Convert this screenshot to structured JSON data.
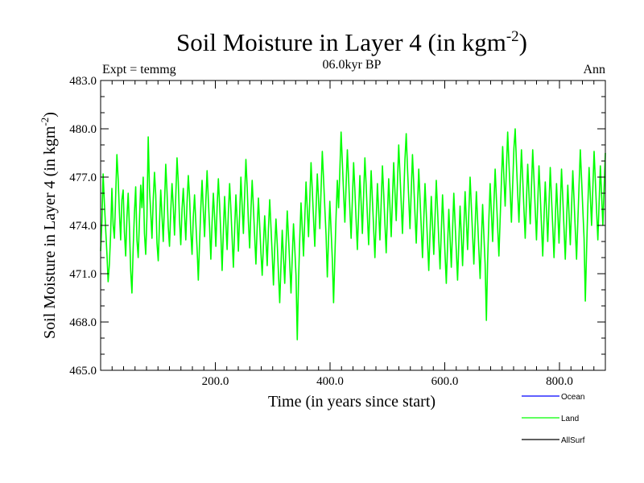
{
  "chart_data": {
    "type": "line",
    "title_main": "Soil Moisture in Layer 4 (in kgm",
    "title_sup": "-2",
    "title_close": ")",
    "subtitle_left": "Expt = temmg",
    "subtitle_center": "06.0kyr BP",
    "subtitle_right": "Ann",
    "xlabel": "Time (in years since start)",
    "ylabel_main": "Soil Moisture in Layer 4 (in kgm",
    "ylabel_sup": "-2",
    "ylabel_close": ")",
    "xlim": [
      0,
      880
    ],
    "ylim": [
      465,
      483
    ],
    "xticks": [
      200,
      400,
      600,
      800
    ],
    "xtick_labels": [
      "200.0",
      "400.0",
      "600.0",
      "800.0"
    ],
    "yticks": [
      465,
      468,
      471,
      474,
      477,
      480,
      483
    ],
    "ytick_labels": [
      "465.0",
      "468.0",
      "471.0",
      "474.0",
      "477.0",
      "480.0",
      "483.0"
    ],
    "grid": false,
    "series": [
      {
        "name": "Ocean",
        "color": "#0000ff",
        "values": []
      },
      {
        "name": "Land",
        "color": "#00ff00",
        "values": [
          472.4,
          474.2,
          477.2,
          475.4,
          473.8,
          472.3,
          470.5,
          471.6,
          473.5,
          476.3,
          474.0,
          473.2,
          475.8,
          478.4,
          476.9,
          474.8,
          473.1,
          475.6,
          476.2,
          473.6,
          472.1,
          474.5,
          476.0,
          473.9,
          471.2,
          469.8,
          472.6,
          474.8,
          476.4,
          473.1,
          472.0,
          474.3,
          476.5,
          475.1,
          477.0,
          473.5,
          472.2,
          474.6,
          479.5,
          476.3,
          474.8,
          473.2,
          475.6,
          477.3,
          475.9,
          472.9,
          471.8,
          474.1,
          476.2,
          474.6,
          473.0,
          475.3,
          477.8,
          476.1,
          473.9,
          472.7,
          474.9,
          476.6,
          475.2,
          473.4,
          475.8,
          478.2,
          476.7,
          474.3,
          472.8,
          475.0,
          476.3,
          474.7,
          473.1,
          475.4,
          477.1,
          475.8,
          473.6,
          472.2,
          474.5,
          475.9,
          474.2,
          472.6,
          470.6,
          472.9,
          475.1,
          476.8,
          474.9,
          473.3,
          475.5,
          477.4,
          475.6,
          473.9,
          471.9,
          474.2,
          476.0,
          474.5,
          472.7,
          475.1,
          476.9,
          475.3,
          473.4,
          471.2,
          473.6,
          475.8,
          474.1,
          472.5,
          474.8,
          476.6,
          475.0,
          473.2,
          471.4,
          473.7,
          475.9,
          474.3,
          472.4,
          474.7,
          477.0,
          475.2,
          473.5,
          475.9,
          478.1,
          476.4,
          474.2,
          472.6,
          474.9,
          476.8,
          475.1,
          473.3,
          471.6,
          473.9,
          475.7,
          474.0,
          472.3,
          470.9,
          472.8,
          474.6,
          473.1,
          471.5,
          473.8,
          475.6,
          473.9,
          472.2,
          470.3,
          472.6,
          474.4,
          472.9,
          471.0,
          469.2,
          471.5,
          473.7,
          472.0,
          470.4,
          472.7,
          474.9,
          473.3,
          471.6,
          469.8,
          472.0,
          474.1,
          472.6,
          470.9,
          466.9,
          470.5,
          473.2,
          475.4,
          473.8,
          472.1,
          474.4,
          476.7,
          475.0,
          473.3,
          475.6,
          477.9,
          476.2,
          474.4,
          472.7,
          475.0,
          477.2,
          475.6,
          473.8,
          476.2,
          478.6,
          476.9,
          475.1,
          473.4,
          470.8,
          473.2,
          475.5,
          473.7,
          471.9,
          469.2,
          472.0,
          474.6,
          476.8,
          475.1,
          477.4,
          479.8,
          477.9,
          476.0,
          474.2,
          476.5,
          478.7,
          476.9,
          475.0,
          473.2,
          475.6,
          477.9,
          476.2,
          474.3,
          472.5,
          474.8,
          477.1,
          475.4,
          473.5,
          475.9,
          478.2,
          476.5,
          474.6,
          472.8,
          475.1,
          477.4,
          475.6,
          473.8,
          472.0,
          474.3,
          476.6,
          474.9,
          473.1,
          475.4,
          477.7,
          476.0,
          474.1,
          472.3,
          474.6,
          476.9,
          475.2,
          473.3,
          475.6,
          477.9,
          476.1,
          474.3,
          476.7,
          479.0,
          477.2,
          475.4,
          473.5,
          475.8,
          478.1,
          479.7,
          477.6,
          475.7,
          473.8,
          476.1,
          478.4,
          476.6,
          474.7,
          472.9,
          475.2,
          477.5,
          475.7,
          473.9,
          472.0,
          474.3,
          476.6,
          474.8,
          473.0,
          471.2,
          473.5,
          475.8,
          474.0,
          472.2,
          474.5,
          476.8,
          475.0,
          473.1,
          471.3,
          473.6,
          475.9,
          474.1,
          472.2,
          470.4,
          472.7,
          475.0,
          473.2,
          471.4,
          473.7,
          476.0,
          474.2,
          472.4,
          470.6,
          472.9,
          475.2,
          473.4,
          471.5,
          473.8,
          476.1,
          474.3,
          472.5,
          474.8,
          477.0,
          475.2,
          473.4,
          471.6,
          473.9,
          476.1,
          474.3,
          472.5,
          470.7,
          473.0,
          475.3,
          473.4,
          471.6,
          468.1,
          471.8,
          474.4,
          476.6,
          474.8,
          473.0,
          475.3,
          477.5,
          475.7,
          473.9,
          472.1,
          474.4,
          476.7,
          478.9,
          477.0,
          475.2,
          477.5,
          479.8,
          477.9,
          476.1,
          474.2,
          476.5,
          478.8,
          480.0,
          477.9,
          476.0,
          474.2,
          476.5,
          478.7,
          476.9,
          475.0,
          473.2,
          475.5,
          477.8,
          476.0,
          474.1,
          476.4,
          478.7,
          476.9,
          475.0,
          473.1,
          475.4,
          477.7,
          475.9,
          474.0,
          472.1,
          474.4,
          476.7,
          474.9,
          473.0,
          475.3,
          477.6,
          475.7,
          473.9,
          472.0,
          474.3,
          476.6,
          474.8,
          472.9,
          475.2,
          477.5,
          475.7,
          473.8,
          471.9,
          474.2,
          476.5,
          474.7,
          472.8,
          475.1,
          477.4,
          475.6,
          473.7,
          471.9,
          474.2,
          476.5,
          478.7,
          476.9,
          475.0,
          473.2,
          469.3,
          472.4,
          475.2,
          477.6,
          475.8,
          474.0,
          476.3,
          478.6,
          476.8,
          474.9,
          473.1,
          475.4,
          477.7,
          475.9,
          474.0,
          476.3,
          478.5
        ]
      },
      {
        "name": "AllSurf",
        "color": "#000000",
        "values": []
      }
    ],
    "legend": [
      {
        "name": "Ocean",
        "color": "#0000ff"
      },
      {
        "name": "Land",
        "color": "#00ff00"
      },
      {
        "name": "AllSurf",
        "color": "#000000"
      }
    ],
    "legend_position": "bottom-right"
  }
}
